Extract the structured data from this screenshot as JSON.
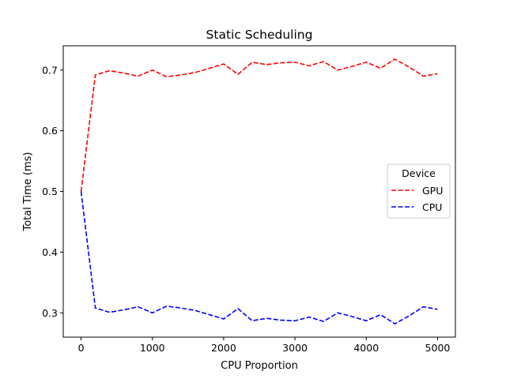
{
  "chart_data": {
    "type": "line",
    "title": "Static Scheduling",
    "xlabel": "CPU Proportion",
    "ylabel": "Total Time (ms)",
    "xlim": [
      -250,
      5250
    ],
    "ylim": [
      0.26,
      0.74
    ],
    "xticks": [
      0,
      1000,
      2000,
      3000,
      4000,
      5000
    ],
    "yticks": [
      0.3,
      0.4,
      0.5,
      0.6,
      0.7
    ],
    "ytick_labels": [
      "0.3",
      "0.4",
      "0.5",
      "0.6",
      "0.7"
    ],
    "grid": false,
    "legend": {
      "title": "Device",
      "placement": "center-right"
    },
    "x": [
      0,
      200,
      400,
      600,
      800,
      1000,
      1200,
      1400,
      1600,
      1800,
      2000,
      2200,
      2400,
      2600,
      2800,
      3000,
      3200,
      3400,
      3600,
      3800,
      4000,
      4200,
      4400,
      4600,
      4800,
      5000
    ],
    "series": [
      {
        "name": "GPU",
        "color": "#ff0000",
        "style": "dashed",
        "values": [
          0.5,
          0.692,
          0.699,
          0.695,
          0.69,
          0.7,
          0.689,
          0.692,
          0.696,
          0.703,
          0.71,
          0.693,
          0.713,
          0.709,
          0.712,
          0.713,
          0.707,
          0.714,
          0.7,
          0.706,
          0.713,
          0.703,
          0.718,
          0.705,
          0.69,
          0.694
        ]
      },
      {
        "name": "CPU",
        "color": "#0000ff",
        "style": "dashed",
        "values": [
          0.5,
          0.308,
          0.301,
          0.305,
          0.31,
          0.3,
          0.311,
          0.308,
          0.304,
          0.297,
          0.29,
          0.307,
          0.287,
          0.291,
          0.288,
          0.287,
          0.293,
          0.286,
          0.3,
          0.294,
          0.287,
          0.297,
          0.282,
          0.295,
          0.31,
          0.306
        ]
      }
    ]
  }
}
